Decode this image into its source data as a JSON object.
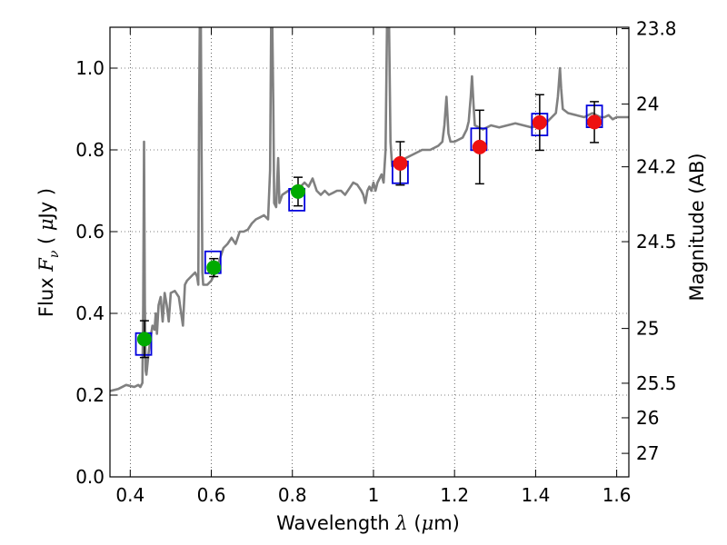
{
  "chart_data": {
    "type": "scatter",
    "xlabel": {
      "prefix": "Wavelength  ",
      "symbol": "λ",
      "unit_open": " (",
      "unit_symbol": "μ",
      "unit_rest": "m)"
    },
    "ylabel": {
      "prefix": "Flux  ",
      "symbol": "F",
      "sub": "ν",
      "unit_open": "  ( ",
      "unit_symbol": "μ",
      "unit_rest": "Jy )"
    },
    "y2label": "Magnitude (AB)",
    "xlim": [
      0.35,
      1.63
    ],
    "ylim": [
      0.0,
      1.1
    ],
    "grid": true,
    "x_ticks": [
      {
        "v": 0.4,
        "label": "0.4"
      },
      {
        "v": 0.6,
        "label": "0.6"
      },
      {
        "v": 0.8,
        "label": "0.8"
      },
      {
        "v": 1.0,
        "label": "1"
      },
      {
        "v": 1.2,
        "label": "1.2"
      },
      {
        "v": 1.4,
        "label": "1.4"
      },
      {
        "v": 1.6,
        "label": "1.6"
      }
    ],
    "y_ticks": [
      {
        "v": 0.0,
        "label": "0.0"
      },
      {
        "v": 0.2,
        "label": "0.2"
      },
      {
        "v": 0.4,
        "label": "0.4"
      },
      {
        "v": 0.6,
        "label": "0.6"
      },
      {
        "v": 0.8,
        "label": "0.8"
      },
      {
        "v": 1.0,
        "label": "1.0"
      }
    ],
    "y2_ticks": [
      {
        "mag": 23.8,
        "label": "23.8"
      },
      {
        "mag": 24.0,
        "label": "24"
      },
      {
        "mag": 24.2,
        "label": "24.2"
      },
      {
        "mag": 24.5,
        "label": "24.5"
      },
      {
        "mag": 25.0,
        "label": "25"
      },
      {
        "mag": 25.5,
        "label": "25.5"
      },
      {
        "mag": 26.0,
        "label": "26"
      },
      {
        "mag": 27.0,
        "label": "27"
      }
    ],
    "spectrum": {
      "color": "#808080",
      "points": [
        [
          0.35,
          0.21
        ],
        [
          0.37,
          0.215
        ],
        [
          0.39,
          0.225
        ],
        [
          0.41,
          0.22
        ],
        [
          0.42,
          0.225
        ],
        [
          0.425,
          0.22
        ],
        [
          0.43,
          0.23
        ],
        [
          0.432,
          0.42
        ],
        [
          0.434,
          0.82
        ],
        [
          0.436,
          0.42
        ],
        [
          0.438,
          0.26
        ],
        [
          0.44,
          0.25
        ],
        [
          0.445,
          0.3
        ],
        [
          0.45,
          0.34
        ],
        [
          0.455,
          0.37
        ],
        [
          0.46,
          0.36
        ],
        [
          0.463,
          0.4
        ],
        [
          0.466,
          0.35
        ],
        [
          0.47,
          0.42
        ],
        [
          0.475,
          0.44
        ],
        [
          0.48,
          0.38
        ],
        [
          0.485,
          0.45
        ],
        [
          0.49,
          0.42
        ],
        [
          0.495,
          0.38
        ],
        [
          0.5,
          0.45
        ],
        [
          0.51,
          0.455
        ],
        [
          0.52,
          0.44
        ],
        [
          0.53,
          0.37
        ],
        [
          0.535,
          0.47
        ],
        [
          0.54,
          0.48
        ],
        [
          0.55,
          0.49
        ],
        [
          0.56,
          0.5
        ],
        [
          0.565,
          0.49
        ],
        [
          0.568,
          0.47
        ],
        [
          0.57,
          0.9
        ],
        [
          0.572,
          1.15
        ],
        [
          0.574,
          1.15
        ],
        [
          0.576,
          0.8
        ],
        [
          0.578,
          0.5
        ],
        [
          0.58,
          0.47
        ],
        [
          0.59,
          0.47
        ],
        [
          0.6,
          0.48
        ],
        [
          0.61,
          0.5
        ],
        [
          0.62,
          0.53
        ],
        [
          0.63,
          0.56
        ],
        [
          0.64,
          0.57
        ],
        [
          0.65,
          0.585
        ],
        [
          0.66,
          0.57
        ],
        [
          0.67,
          0.6
        ],
        [
          0.68,
          0.6
        ],
        [
          0.69,
          0.605
        ],
        [
          0.7,
          0.62
        ],
        [
          0.71,
          0.63
        ],
        [
          0.72,
          0.635
        ],
        [
          0.73,
          0.64
        ],
        [
          0.74,
          0.63
        ],
        [
          0.745,
          0.75
        ],
        [
          0.748,
          1.15
        ],
        [
          0.75,
          1.15
        ],
        [
          0.753,
          0.9
        ],
        [
          0.755,
          0.67
        ],
        [
          0.76,
          0.66
        ],
        [
          0.765,
          0.78
        ],
        [
          0.768,
          0.67
        ],
        [
          0.775,
          0.69
        ],
        [
          0.79,
          0.7
        ],
        [
          0.8,
          0.705
        ],
        [
          0.81,
          0.705
        ],
        [
          0.82,
          0.71
        ],
        [
          0.83,
          0.72
        ],
        [
          0.84,
          0.71
        ],
        [
          0.85,
          0.73
        ],
        [
          0.86,
          0.7
        ],
        [
          0.87,
          0.69
        ],
        [
          0.88,
          0.7
        ],
        [
          0.89,
          0.69
        ],
        [
          0.9,
          0.695
        ],
        [
          0.91,
          0.7
        ],
        [
          0.92,
          0.7
        ],
        [
          0.93,
          0.69
        ],
        [
          0.94,
          0.705
        ],
        [
          0.95,
          0.72
        ],
        [
          0.96,
          0.715
        ],
        [
          0.97,
          0.7
        ],
        [
          0.975,
          0.69
        ],
        [
          0.98,
          0.67
        ],
        [
          0.985,
          0.7
        ],
        [
          0.99,
          0.71
        ],
        [
          0.995,
          0.7
        ],
        [
          1.0,
          0.72
        ],
        [
          1.005,
          0.7
        ],
        [
          1.01,
          0.72
        ],
        [
          1.015,
          0.73
        ],
        [
          1.02,
          0.74
        ],
        [
          1.025,
          0.72
        ],
        [
          1.03,
          0.8
        ],
        [
          1.034,
          1.15
        ],
        [
          1.038,
          1.15
        ],
        [
          1.042,
          0.82
        ],
        [
          1.046,
          0.76
        ],
        [
          1.06,
          0.77
        ],
        [
          1.08,
          0.78
        ],
        [
          1.1,
          0.79
        ],
        [
          1.12,
          0.8
        ],
        [
          1.14,
          0.8
        ],
        [
          1.16,
          0.81
        ],
        [
          1.17,
          0.82
        ],
        [
          1.175,
          0.86
        ],
        [
          1.18,
          0.93
        ],
        [
          1.185,
          0.84
        ],
        [
          1.19,
          0.82
        ],
        [
          1.2,
          0.82
        ],
        [
          1.22,
          0.83
        ],
        [
          1.23,
          0.85
        ],
        [
          1.235,
          0.87
        ],
        [
          1.24,
          0.93
        ],
        [
          1.243,
          0.98
        ],
        [
          1.247,
          0.91
        ],
        [
          1.25,
          0.86
        ],
        [
          1.27,
          0.85
        ],
        [
          1.29,
          0.86
        ],
        [
          1.31,
          0.855
        ],
        [
          1.33,
          0.86
        ],
        [
          1.35,
          0.865
        ],
        [
          1.37,
          0.86
        ],
        [
          1.39,
          0.855
        ],
        [
          1.41,
          0.86
        ],
        [
          1.43,
          0.87
        ],
        [
          1.44,
          0.88
        ],
        [
          1.45,
          0.89
        ],
        [
          1.455,
          0.93
        ],
        [
          1.46,
          1.0
        ],
        [
          1.463,
          0.95
        ],
        [
          1.467,
          0.9
        ],
        [
          1.48,
          0.89
        ],
        [
          1.5,
          0.885
        ],
        [
          1.52,
          0.88
        ],
        [
          1.54,
          0.89
        ],
        [
          1.56,
          0.88
        ],
        [
          1.57,
          0.88
        ],
        [
          1.58,
          0.885
        ],
        [
          1.59,
          0.875
        ],
        [
          1.6,
          0.88
        ],
        [
          1.63,
          0.88
        ]
      ]
    },
    "observed": [
      {
        "x": 0.435,
        "y": 0.337,
        "err": 0.045,
        "color": "#00aa00"
      },
      {
        "x": 0.606,
        "y": 0.512,
        "err": 0.022,
        "color": "#00aa00"
      },
      {
        "x": 0.814,
        "y": 0.698,
        "err": 0.035,
        "color": "#00aa00"
      },
      {
        "x": 1.066,
        "y": 0.767,
        "err": 0.053,
        "color": "#ee1111"
      },
      {
        "x": 1.262,
        "y": 0.807,
        "err": 0.09,
        "color": "#ee1111"
      },
      {
        "x": 1.41,
        "y": 0.867,
        "err": 0.068,
        "color": "#ee1111"
      },
      {
        "x": 1.545,
        "y": 0.868,
        "err": 0.05,
        "color": "#ee1111"
      }
    ],
    "model": {
      "color": "#0000dd",
      "points": [
        {
          "x": 0.433,
          "y": 0.325
        },
        {
          "x": 0.604,
          "y": 0.525
        },
        {
          "x": 0.811,
          "y": 0.678
        },
        {
          "x": 1.066,
          "y": 0.745
        },
        {
          "x": 1.26,
          "y": 0.826
        },
        {
          "x": 1.41,
          "y": 0.862
        },
        {
          "x": 1.545,
          "y": 0.882
        }
      ]
    }
  }
}
